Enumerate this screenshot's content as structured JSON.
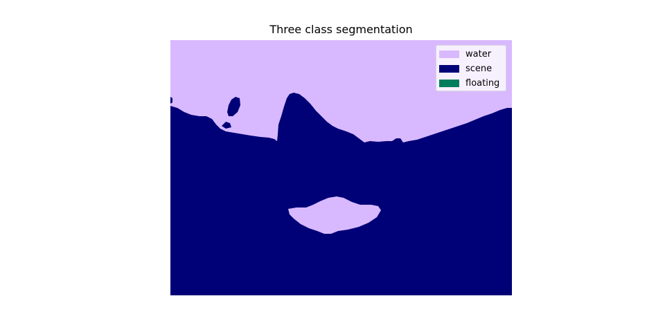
{
  "figure": {
    "title": "Three class segmentation"
  },
  "classes": [
    {
      "key": "water",
      "label": "water",
      "color": "#d8b9ff"
    },
    {
      "key": "scene",
      "label": "scene",
      "color": "#000077"
    },
    {
      "key": "floating",
      "label": "floating",
      "color": "#007d5b"
    }
  ]
}
